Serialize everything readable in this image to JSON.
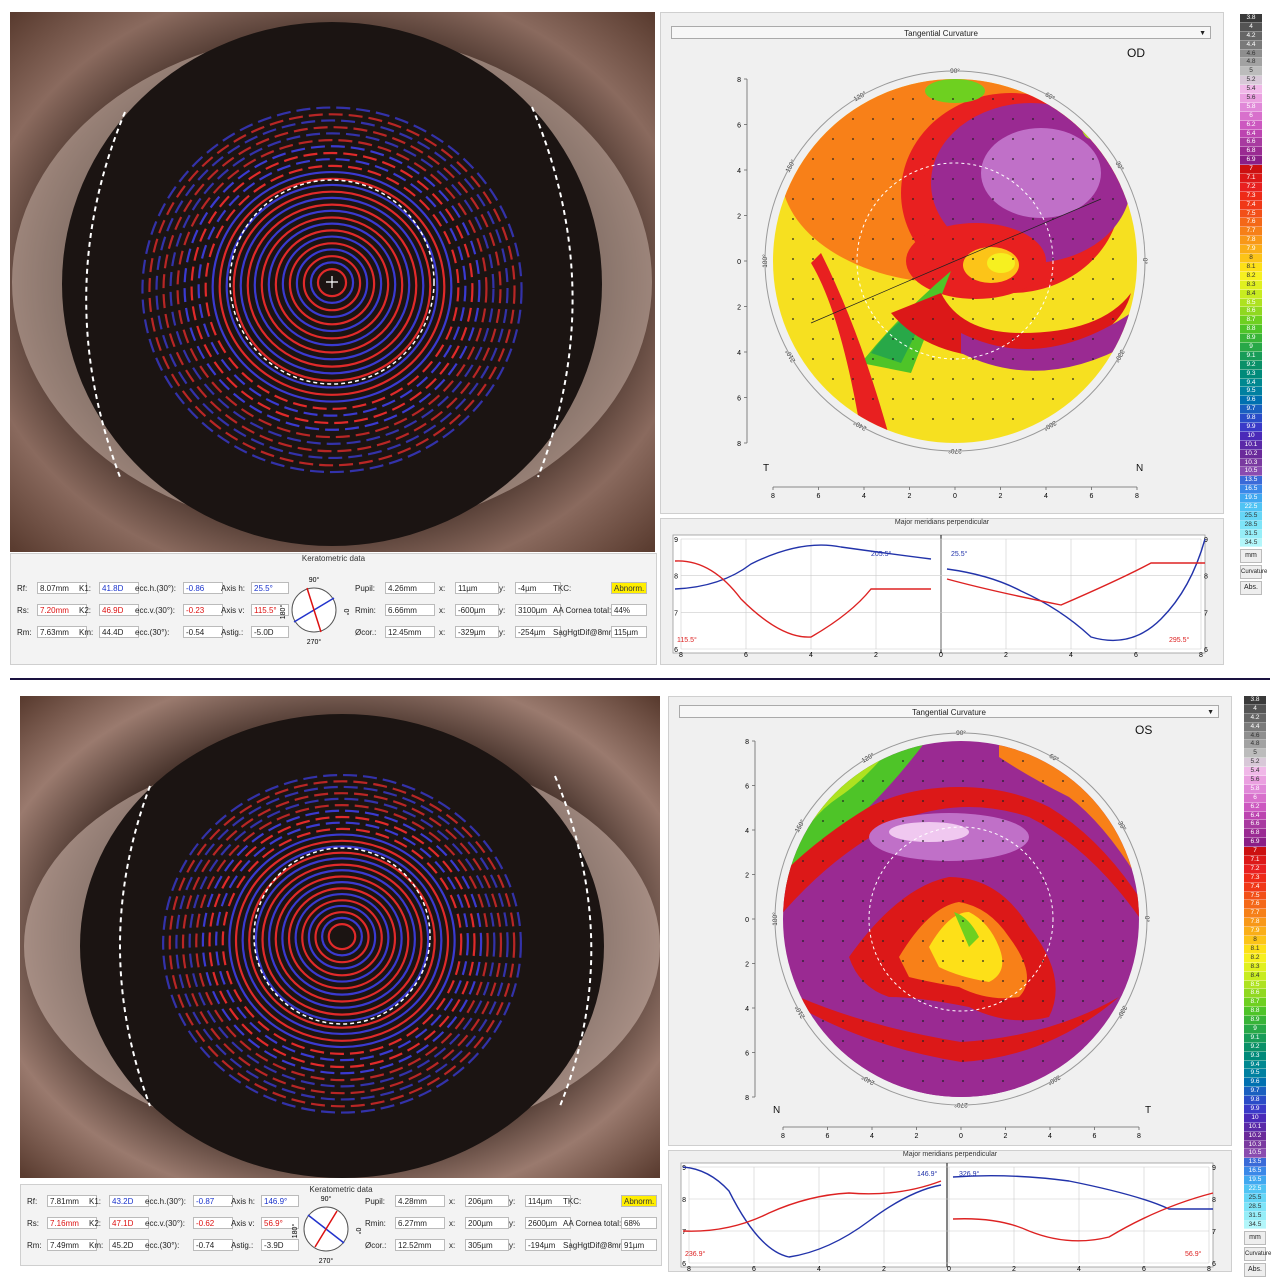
{
  "od": {
    "eye_label": "OD",
    "map_dropdown": "Tangential Curvature",
    "map_letters": {
      "left": "T",
      "right": "N"
    },
    "keratometric_title": "Keratometric data",
    "fields": {
      "rf": {
        "label": "Rf:",
        "value": "8.07mm"
      },
      "rs": {
        "label": "Rs:",
        "value": "7.20mm"
      },
      "rm": {
        "label": "Rm:",
        "value": "7.63mm"
      },
      "k1": {
        "label": "K1:",
        "value": "41.8D"
      },
      "k2": {
        "label": "K2:",
        "value": "46.9D"
      },
      "km": {
        "label": "Km:",
        "value": "44.4D"
      },
      "ecch": {
        "label": "ecc.h.(30°):",
        "value": "-0.86"
      },
      "eccv": {
        "label": "ecc.v.(30°):",
        "value": "-0.23"
      },
      "ecc": {
        "label": "ecc.(30°):",
        "value": "-0.54"
      },
      "axish": {
        "label": "Axis h:",
        "value": "25.5°"
      },
      "axisv": {
        "label": "Axis v:",
        "value": "115.5°"
      },
      "astig": {
        "label": "Astig.:",
        "value": "-5.0D"
      },
      "pupil": {
        "label": "Pupil:",
        "value": "4.26mm"
      },
      "rmin": {
        "label": "Rmin:",
        "value": "6.66mm"
      },
      "ocor": {
        "label": "Øcor.:",
        "value": "12.45mm"
      },
      "x1": {
        "label": "x:",
        "value": "11µm"
      },
      "x2": {
        "label": "x:",
        "value": "-600µm"
      },
      "x3": {
        "label": "x:",
        "value": "-329µm"
      },
      "y1": {
        "label": "y:",
        "value": "-4µm"
      },
      "y2": {
        "label": "y:",
        "value": "3100µm"
      },
      "y3": {
        "label": "y:",
        "value": "-254µm"
      },
      "tkc": {
        "label": "TKC:",
        "value": "Abnorm."
      },
      "aa": {
        "label": "AA Cornea total:",
        "value": "44%"
      },
      "sag": {
        "label": "SagHgtDif@8mm:",
        "value": "115µm"
      }
    },
    "dial": {
      "top": "90°",
      "bottom": "270°",
      "left": "180°",
      "right": "0°"
    },
    "graph": {
      "title": "Major meridians perpendicular",
      "left_angle_top": "205.5°",
      "left_angle_bottom": "115.5°",
      "right_angle_top": "25.5°",
      "right_angle_bottom": "295.5°"
    }
  },
  "os": {
    "eye_label": "OS",
    "map_dropdown": "Tangential Curvature",
    "map_letters": {
      "left": "N",
      "right": "T"
    },
    "keratometric_title": "Keratometric data",
    "fields": {
      "rf": {
        "label": "Rf:",
        "value": "7.81mm"
      },
      "rs": {
        "label": "Rs:",
        "value": "7.16mm"
      },
      "rm": {
        "label": "Rm:",
        "value": "7.49mm"
      },
      "k1": {
        "label": "K1:",
        "value": "43.2D"
      },
      "k2": {
        "label": "K2:",
        "value": "47.1D"
      },
      "km": {
        "label": "Km:",
        "value": "45.2D"
      },
      "ecch": {
        "label": "ecc.h.(30°):",
        "value": "-0.87"
      },
      "eccv": {
        "label": "ecc.v.(30°):",
        "value": "-0.62"
      },
      "ecc": {
        "label": "ecc.(30°):",
        "value": "-0.74"
      },
      "axish": {
        "label": "Axis h:",
        "value": "146.9°"
      },
      "axisv": {
        "label": "Axis v:",
        "value": "56.9°"
      },
      "astig": {
        "label": "Astig.:",
        "value": "-3.9D"
      },
      "pupil": {
        "label": "Pupil:",
        "value": "4.28mm"
      },
      "rmin": {
        "label": "Rmin:",
        "value": "6.27mm"
      },
      "ocor": {
        "label": "Øcor.:",
        "value": "12.52mm"
      },
      "x1": {
        "label": "x:",
        "value": "206µm"
      },
      "x2": {
        "label": "x:",
        "value": "200µm"
      },
      "x3": {
        "label": "x:",
        "value": "305µm"
      },
      "y1": {
        "label": "y:",
        "value": "114µm"
      },
      "y2": {
        "label": "y:",
        "value": "2600µm"
      },
      "y3": {
        "label": "y:",
        "value": "-194µm"
      },
      "tkc": {
        "label": "TKC:",
        "value": "Abnorm."
      },
      "aa": {
        "label": "AA Cornea total:",
        "value": "68%"
      },
      "sag": {
        "label": "SagHgtDif@8mm:",
        "value": "91µm"
      }
    },
    "dial": {
      "top": "90°",
      "bottom": "270°",
      "left": "180°",
      "right": "0°"
    },
    "graph": {
      "title": "Major meridians perpendicular",
      "left_angle_top": "146.9°",
      "left_angle_bottom": "236.9°",
      "right_angle_top": "326.9°",
      "right_angle_bottom": "56.9°"
    }
  },
  "map_axis_ticks": [
    "8",
    "6",
    "4",
    "2",
    "0",
    "2",
    "4",
    "6",
    "8"
  ],
  "map_angle_labels": [
    "90°",
    "60°",
    "30°",
    "0°",
    "330°",
    "300°",
    "270°",
    "240°",
    "210°",
    "180°",
    "150°",
    "120°"
  ],
  "graph_y_ticks": [
    "9",
    "8",
    "7",
    "6"
  ],
  "graph_x_ticks": [
    "8",
    "6",
    "4",
    "2",
    "0",
    "2",
    "4",
    "6",
    "8"
  ],
  "scale_values": [
    "3.8",
    "4",
    "4.2",
    "4.4",
    "4.6",
    "4.8",
    "5",
    "5.2",
    "5.4",
    "5.6",
    "5.8",
    "6",
    "6.2",
    "6.4",
    "6.6",
    "6.8",
    "6.9",
    "7",
    "7.1",
    "7.2",
    "7.3",
    "7.4",
    "7.5",
    "7.6",
    "7.7",
    "7.8",
    "7.9",
    "8",
    "8.1",
    "8.2",
    "8.3",
    "8.4",
    "8.5",
    "8.6",
    "8.7",
    "8.8",
    "8.9",
    "9",
    "9.1",
    "9.2",
    "9.3",
    "9.4",
    "9.5",
    "9.6",
    "9.7",
    "9.8",
    "9.9",
    "10",
    "10.1",
    "10.2",
    "10.3",
    "10.5",
    "13.5",
    "16.5",
    "19.5",
    "22.5",
    "25.5",
    "28.5",
    "31.5",
    "34.5"
  ],
  "scale_colors": [
    "#3a3a3a",
    "#545454",
    "#666666",
    "#7a7a7a",
    "#8e8e8e",
    "#a2a2a2",
    "#bcbcbc",
    "#d8c8d8",
    "#f0b8e8",
    "#eaa0e0",
    "#e088d8",
    "#d870cc",
    "#cc58c0",
    "#bc44b0",
    "#a83aa0",
    "#9a2a92",
    "#8a1e86",
    "#cc1010",
    "#dc1818",
    "#e82020",
    "#ee2a18",
    "#f03818",
    "#f25018",
    "#f46818",
    "#f68018",
    "#f89818",
    "#faae18",
    "#fcc418",
    "#fde018",
    "#f6f020",
    "#e0f020",
    "#c8ec20",
    "#aee220",
    "#90d820",
    "#6ed020",
    "#4ec428",
    "#38b438",
    "#28a848",
    "#189c58",
    "#0a9068",
    "#008a7a",
    "#008890",
    "#0080a0",
    "#0070b0",
    "#1a60c0",
    "#2a4cc8",
    "#3a3ac8",
    "#4a2ab8",
    "#5a2aa8",
    "#6a2a9a",
    "#7a3aa0",
    "#8a4cb0",
    "#3a6ad8",
    "#3a88e8",
    "#40a8f0",
    "#50c4f4",
    "#66d6f6",
    "#7ee4f8",
    "#96eef8",
    "#b2f6fa"
  ],
  "scale_buttons": [
    "mm",
    "Curvature",
    "Abs."
  ]
}
